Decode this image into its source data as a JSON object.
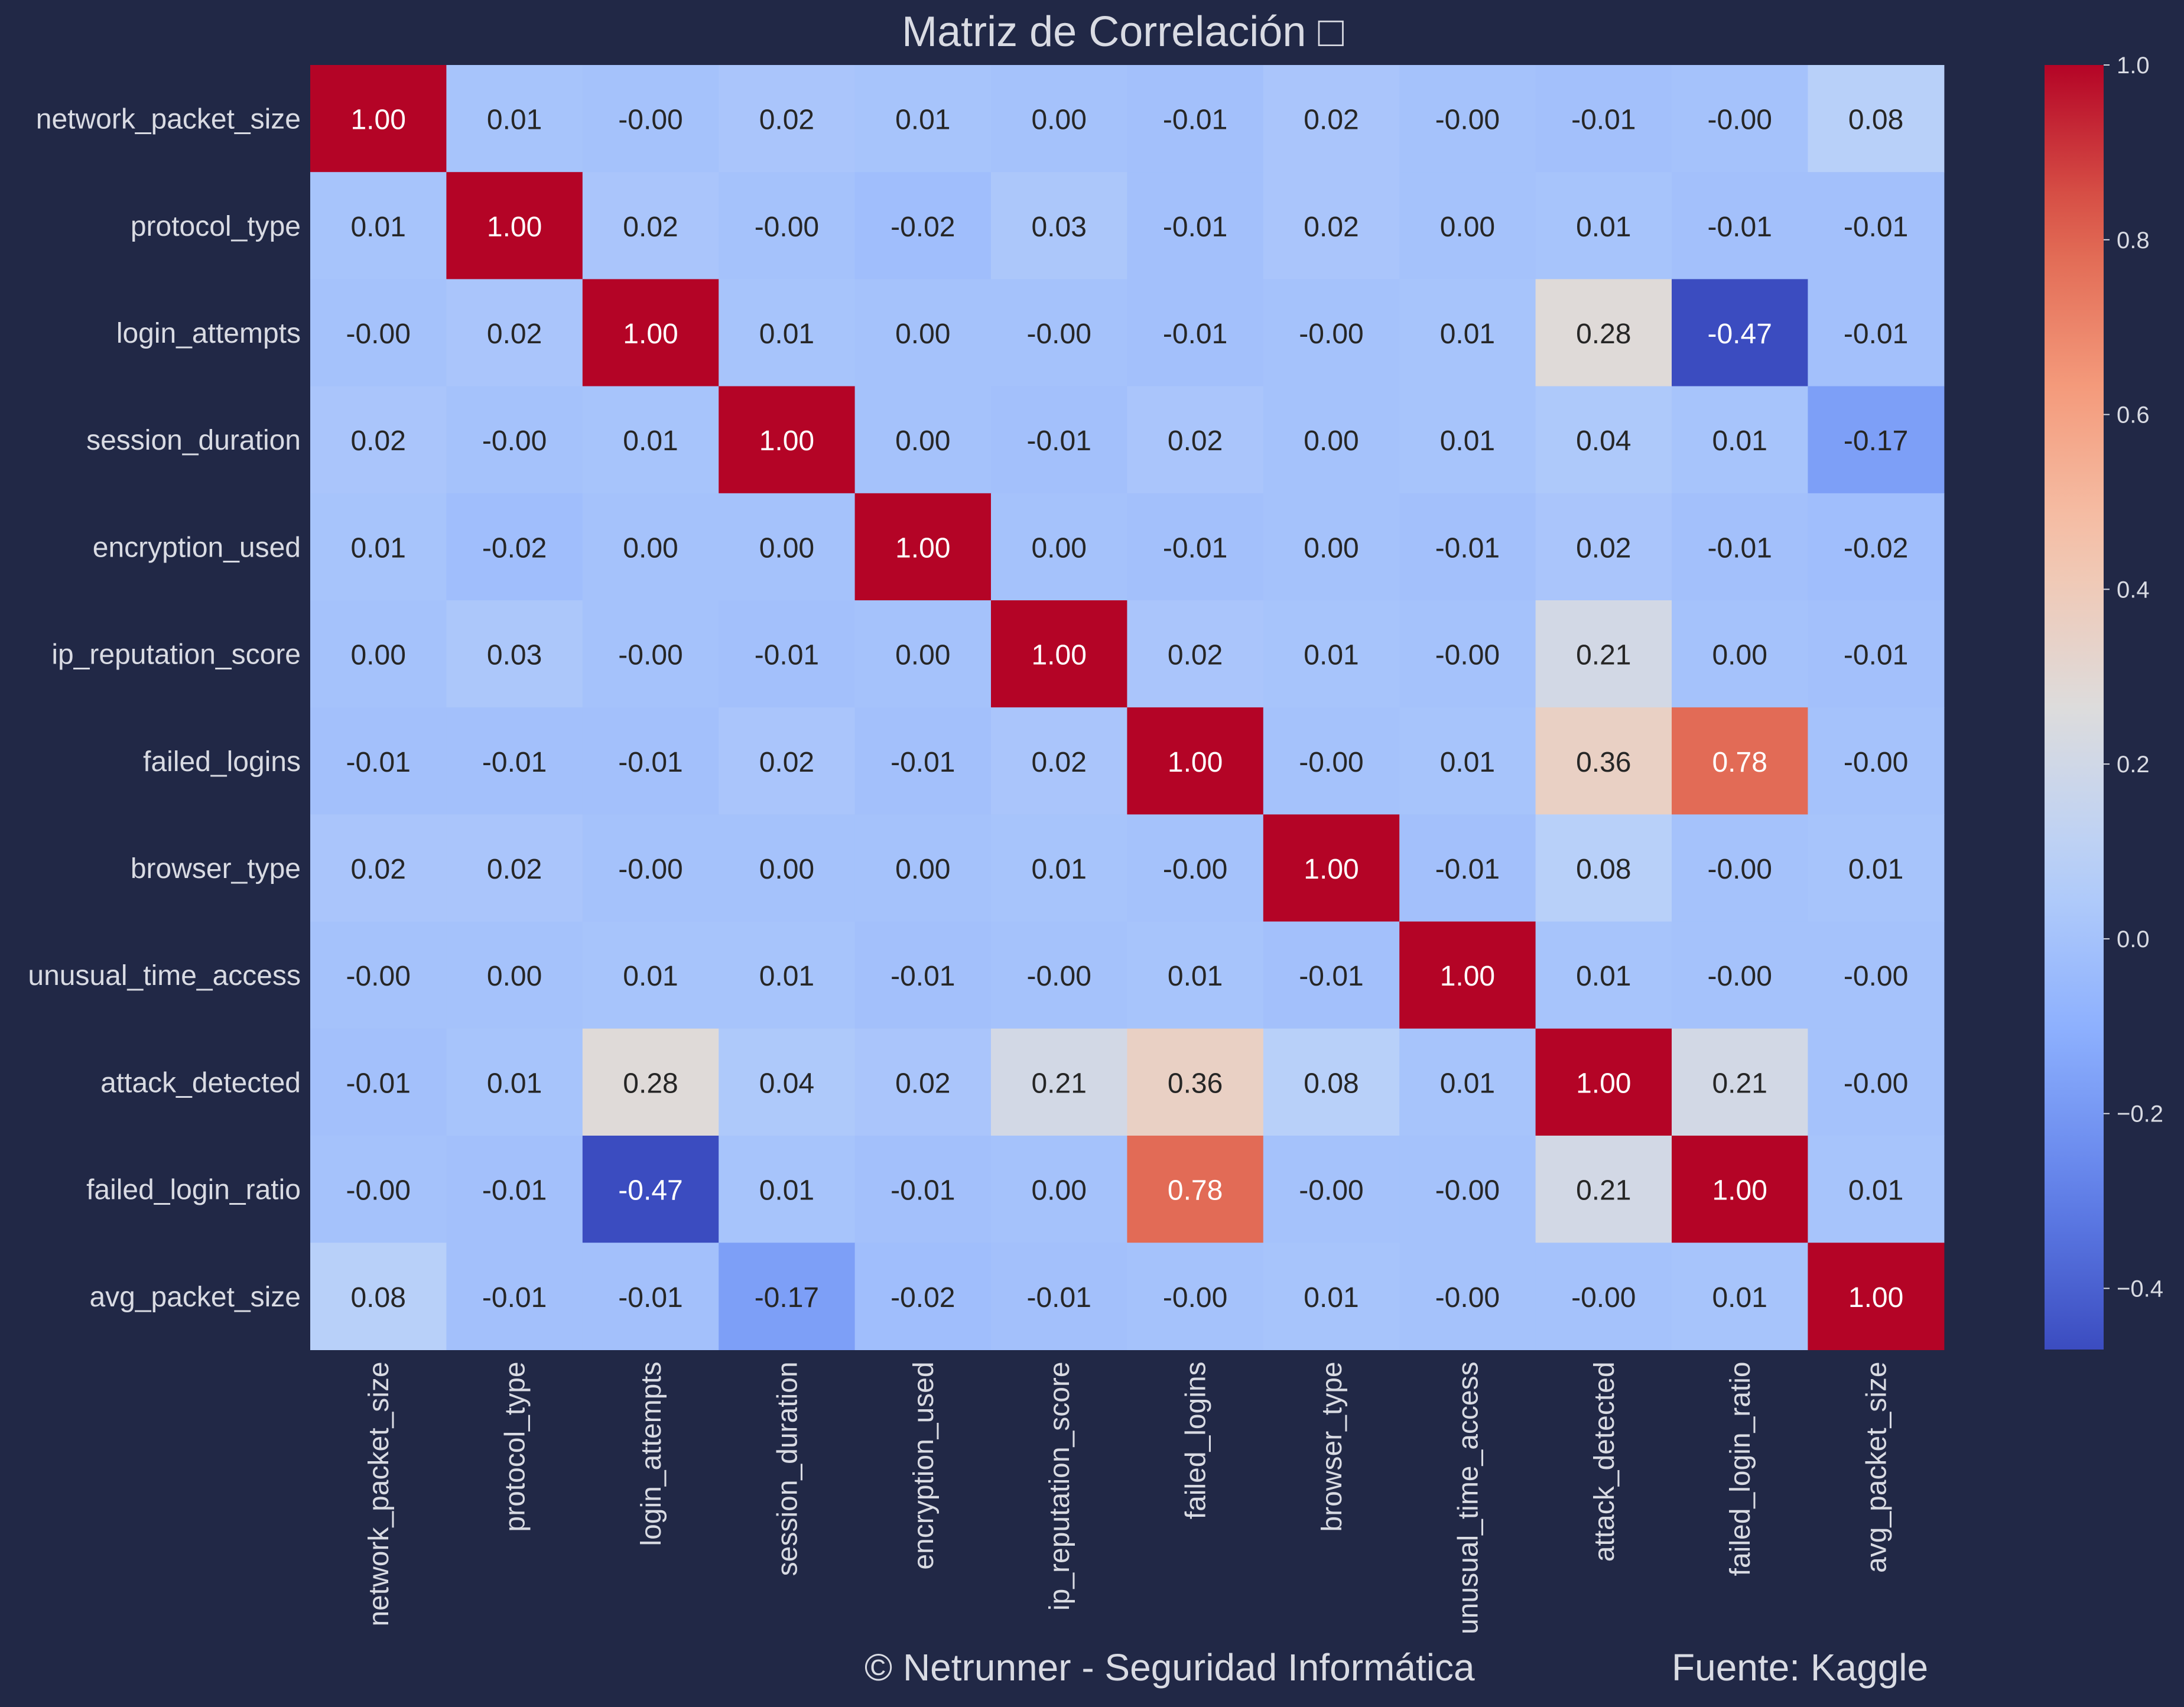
{
  "chart_data": {
    "type": "heatmap",
    "title": "Matriz de Correlación □",
    "row_labels": [
      "network_packet_size",
      "protocol_type",
      "login_attempts",
      "session_duration",
      "encryption_used",
      "ip_reputation_score",
      "failed_logins",
      "browser_type",
      "unusual_time_access",
      "attack_detected",
      "failed_login_ratio",
      "avg_packet_size"
    ],
    "col_labels": [
      "network_packet_size",
      "protocol_type",
      "login_attempts",
      "session_duration",
      "encryption_used",
      "ip_reputation_score",
      "failed_logins",
      "browser_type",
      "unusual_time_access",
      "attack_detected",
      "failed_login_ratio",
      "avg_packet_size"
    ],
    "values": [
      [
        1.0,
        0.01,
        -0.0,
        0.02,
        0.01,
        0.0,
        -0.01,
        0.02,
        -0.0,
        -0.01,
        -0.0,
        0.08
      ],
      [
        0.01,
        1.0,
        0.02,
        -0.0,
        -0.02,
        0.03,
        -0.01,
        0.02,
        0.0,
        0.01,
        -0.01,
        -0.01
      ],
      [
        -0.0,
        0.02,
        1.0,
        0.01,
        0.0,
        -0.0,
        -0.01,
        -0.0,
        0.01,
        0.28,
        -0.47,
        -0.01
      ],
      [
        0.02,
        -0.0,
        0.01,
        1.0,
        0.0,
        -0.01,
        0.02,
        0.0,
        0.01,
        0.04,
        0.01,
        -0.17
      ],
      [
        0.01,
        -0.02,
        0.0,
        0.0,
        1.0,
        0.0,
        -0.01,
        0.0,
        -0.01,
        0.02,
        -0.01,
        -0.02
      ],
      [
        0.0,
        0.03,
        -0.0,
        -0.01,
        0.0,
        1.0,
        0.02,
        0.01,
        -0.0,
        0.21,
        0.0,
        -0.01
      ],
      [
        -0.01,
        -0.01,
        -0.01,
        0.02,
        -0.01,
        0.02,
        1.0,
        -0.0,
        0.01,
        0.36,
        0.78,
        -0.0
      ],
      [
        0.02,
        0.02,
        -0.0,
        0.0,
        0.0,
        0.01,
        -0.0,
        1.0,
        -0.01,
        0.08,
        -0.0,
        0.01
      ],
      [
        -0.0,
        0.0,
        0.01,
        0.01,
        -0.01,
        -0.0,
        0.01,
        -0.01,
        1.0,
        0.01,
        -0.0,
        -0.0
      ],
      [
        -0.01,
        0.01,
        0.28,
        0.04,
        0.02,
        0.21,
        0.36,
        0.08,
        0.01,
        1.0,
        0.21,
        -0.0
      ],
      [
        -0.0,
        -0.01,
        -0.47,
        0.01,
        -0.01,
        0.0,
        0.78,
        -0.0,
        -0.0,
        0.21,
        1.0,
        0.01
      ],
      [
        0.08,
        -0.01,
        -0.01,
        -0.17,
        -0.02,
        -0.01,
        -0.0,
        0.01,
        -0.0,
        -0.0,
        0.01,
        1.0
      ]
    ],
    "value_labels": [
      [
        "1.00",
        "0.01",
        "-0.00",
        "0.02",
        "0.01",
        "0.00",
        "-0.01",
        "0.02",
        "-0.00",
        "-0.01",
        "-0.00",
        "0.08"
      ],
      [
        "0.01",
        "1.00",
        "0.02",
        "-0.00",
        "-0.02",
        "0.03",
        "-0.01",
        "0.02",
        "0.00",
        "0.01",
        "-0.01",
        "-0.01"
      ],
      [
        "-0.00",
        "0.02",
        "1.00",
        "0.01",
        "0.00",
        "-0.00",
        "-0.01",
        "-0.00",
        "0.01",
        "0.28",
        "-0.47",
        "-0.01"
      ],
      [
        "0.02",
        "-0.00",
        "0.01",
        "1.00",
        "0.00",
        "-0.01",
        "0.02",
        "0.00",
        "0.01",
        "0.04",
        "0.01",
        "-0.17"
      ],
      [
        "0.01",
        "-0.02",
        "0.00",
        "0.00",
        "1.00",
        "0.00",
        "-0.01",
        "0.00",
        "-0.01",
        "0.02",
        "-0.01",
        "-0.02"
      ],
      [
        "0.00",
        "0.03",
        "-0.00",
        "-0.01",
        "0.00",
        "1.00",
        "0.02",
        "0.01",
        "-0.00",
        "0.21",
        "0.00",
        "-0.01"
      ],
      [
        "-0.01",
        "-0.01",
        "-0.01",
        "0.02",
        "-0.01",
        "0.02",
        "1.00",
        "-0.00",
        "0.01",
        "0.36",
        "0.78",
        "-0.00"
      ],
      [
        "0.02",
        "0.02",
        "-0.00",
        "0.00",
        "0.00",
        "0.01",
        "-0.00",
        "1.00",
        "-0.01",
        "0.08",
        "-0.00",
        "0.01"
      ],
      [
        "-0.00",
        "0.00",
        "0.01",
        "0.01",
        "-0.01",
        "-0.00",
        "0.01",
        "-0.01",
        "1.00",
        "0.01",
        "-0.00",
        "-0.00"
      ],
      [
        "-0.01",
        "0.01",
        "0.28",
        "0.04",
        "0.02",
        "0.21",
        "0.36",
        "0.08",
        "0.01",
        "1.00",
        "0.21",
        "-0.00"
      ],
      [
        "-0.00",
        "-0.01",
        "-0.47",
        "0.01",
        "-0.01",
        "0.00",
        "0.78",
        "-0.00",
        "-0.00",
        "0.21",
        "1.00",
        "0.01"
      ],
      [
        "0.08",
        "-0.01",
        "-0.01",
        "-0.17",
        "-0.02",
        "-0.01",
        "-0.00",
        "0.01",
        "-0.00",
        "-0.00",
        "0.01",
        "1.00"
      ]
    ],
    "colormap": "coolwarm",
    "vmin": -0.47,
    "vmax": 1.0,
    "colorbar_ticks": [
      1.0,
      0.8,
      0.6,
      0.4,
      0.2,
      0.0,
      -0.2,
      -0.4
    ],
    "colorbar_tick_labels": [
      "1.0",
      "0.8",
      "0.6",
      "0.4",
      "0.2",
      "0.0",
      "−0.2",
      "−0.4"
    ]
  },
  "footer": {
    "copyright": "© Netrunner - Seguridad Informática",
    "source": "Fuente: Kaggle"
  },
  "colors": {
    "background": "#212846",
    "text": "#d9dbe3",
    "cold": "#3b4cc0",
    "neutral": "#dddcdc",
    "hot": "#b40426"
  }
}
